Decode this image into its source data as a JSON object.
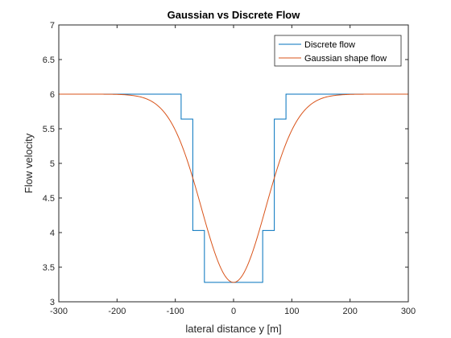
{
  "chart_data": {
    "type": "line",
    "title": "Gaussian vs Discrete Flow",
    "xlabel": "lateral distance y [m]",
    "ylabel": "Flow velocity",
    "xlim": [
      -300,
      300
    ],
    "ylim": [
      3,
      7
    ],
    "xticks": [
      -300,
      -200,
      -100,
      0,
      100,
      200,
      300
    ],
    "yticks": [
      3,
      3.5,
      4,
      4.5,
      5,
      5.5,
      6,
      6.5,
      7
    ],
    "xtick_labels": [
      "-300",
      "-200",
      "-100",
      "0",
      "100",
      "200",
      "300"
    ],
    "ytick_labels": [
      "3",
      "3.5",
      "4",
      "4.5",
      "5",
      "5.5",
      "6",
      "6.5",
      "7"
    ],
    "grid": false,
    "legend_position": "top-right",
    "series": [
      {
        "name": "Discrete flow",
        "color": "#0072bd",
        "style": "step",
        "points": [
          [
            -300,
            6.0
          ],
          [
            -90,
            6.0
          ],
          [
            -90,
            5.64
          ],
          [
            -70,
            5.64
          ],
          [
            -70,
            4.03
          ],
          [
            -50,
            4.03
          ],
          [
            -50,
            3.28
          ],
          [
            50,
            3.28
          ],
          [
            50,
            4.03
          ],
          [
            70,
            4.03
          ],
          [
            70,
            5.64
          ],
          [
            90,
            5.64
          ],
          [
            90,
            6.0
          ],
          [
            300,
            6.0
          ]
        ]
      },
      {
        "name": "Gaussian shape flow",
        "color": "#d95319",
        "style": "curve",
        "baseline": 6.0,
        "minimum": 3.28,
        "center": 0,
        "sigma": 55,
        "points": [
          [
            -300,
            6.0
          ],
          [
            -150,
            5.97
          ],
          [
            -120,
            5.89
          ],
          [
            -100,
            5.73
          ],
          [
            -80,
            5.42
          ],
          [
            -60,
            4.95
          ],
          [
            -40,
            4.34
          ],
          [
            -20,
            3.67
          ],
          [
            0,
            3.28
          ],
          [
            20,
            3.67
          ],
          [
            40,
            4.34
          ],
          [
            60,
            4.95
          ],
          [
            80,
            5.42
          ],
          [
            100,
            5.73
          ],
          [
            120,
            5.89
          ],
          [
            150,
            5.97
          ],
          [
            300,
            6.0
          ]
        ]
      }
    ]
  }
}
